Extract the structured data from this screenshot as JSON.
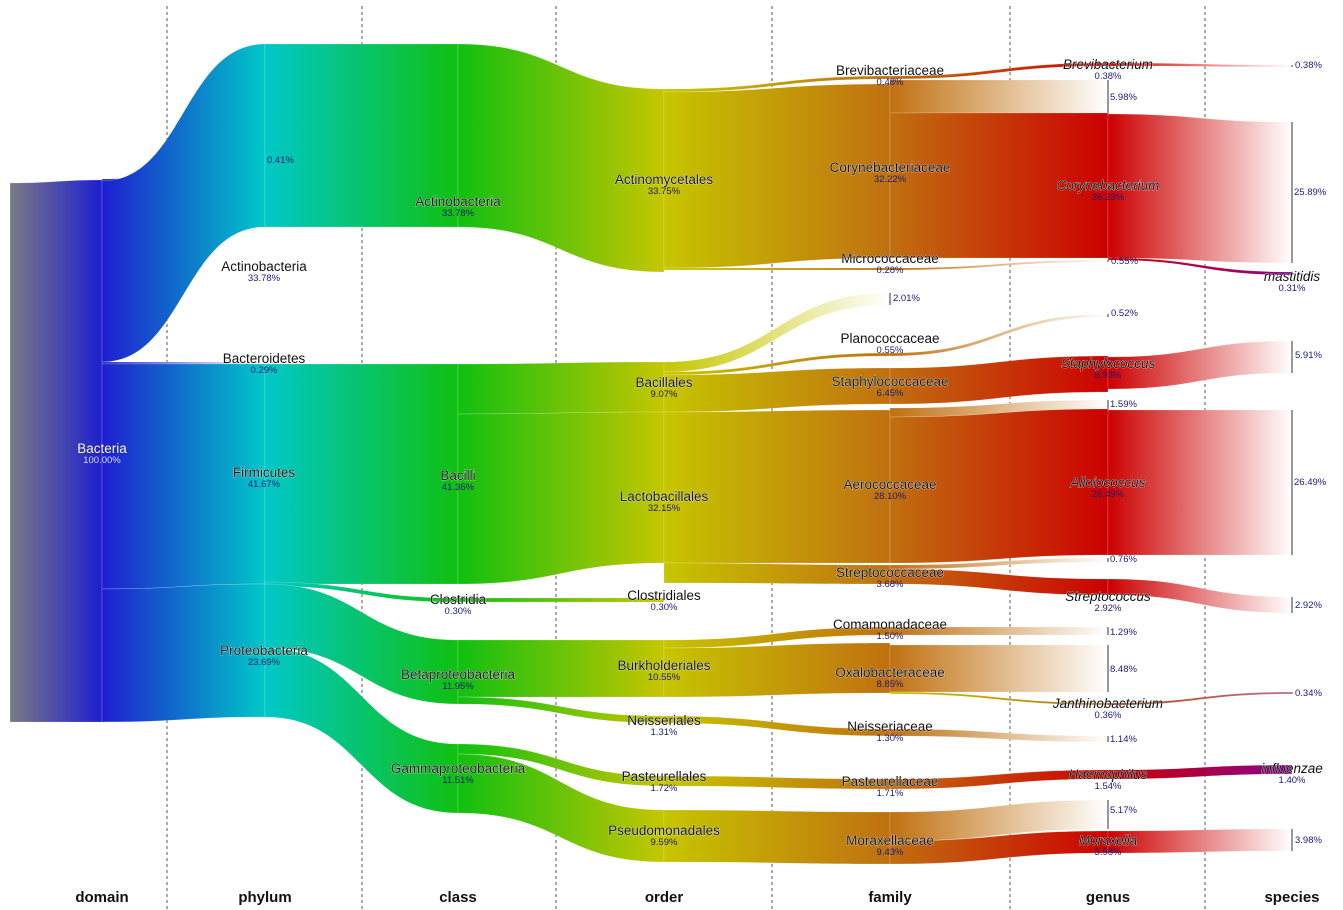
{
  "columns": [
    "domain",
    "phylum",
    "class",
    "order",
    "family",
    "genus",
    "species"
  ],
  "nodes": {
    "bacteria": {
      "name": "Bacteria",
      "pct": "100.00%"
    },
    "actinobacteria_p": {
      "name": "Actinobacteria",
      "pct": "33.78%"
    },
    "bacteroidetes": {
      "name": "Bacteroidetes",
      "pct": "0.29%"
    },
    "firmicutes": {
      "name": "Firmicutes",
      "pct": "41.67%"
    },
    "proteobacteria": {
      "name": "Proteobacteria",
      "pct": "23.69%"
    },
    "phylum_minor": {
      "pct": "0.41%"
    },
    "actinobacteria_c": {
      "name": "Actinobacteria",
      "pct": "33.78%"
    },
    "bacilli": {
      "name": "Bacilli",
      "pct": "41.36%"
    },
    "clostridia": {
      "name": "Clostridia",
      "pct": "0.30%"
    },
    "betaproteobacteria": {
      "name": "Betaproteobacteria",
      "pct": "11.95%"
    },
    "gammaproteobacteria": {
      "name": "Gammaproteobacteria",
      "pct": "11.51%"
    },
    "actinomycetales": {
      "name": "Actinomycetales",
      "pct": "33.75%"
    },
    "bacillales": {
      "name": "Bacillales",
      "pct": "9.07%"
    },
    "lactobacillales": {
      "name": "Lactobacillales",
      "pct": "32.15%"
    },
    "clostridiales": {
      "name": "Clostridiales",
      "pct": "0.30%"
    },
    "burkholderiales": {
      "name": "Burkholderiales",
      "pct": "10.55%"
    },
    "neisseriales": {
      "name": "Neisseriales",
      "pct": "1.31%"
    },
    "pasteurellales": {
      "name": "Pasteurellales",
      "pct": "1.72%"
    },
    "pseudomonadales": {
      "name": "Pseudomonadales",
      "pct": "9.59%"
    },
    "brevibacteriaceae": {
      "name": "Brevibacteriaceae",
      "pct": "0.48%"
    },
    "corynebacteriaceae": {
      "name": "Corynebacteriaceae",
      "pct": "32.22%"
    },
    "micrococcaceae": {
      "name": "Micrococcaceae",
      "pct": "0.28%"
    },
    "family_minor": {
      "pct": "2.01%"
    },
    "planococcaceae": {
      "name": "Planococcaceae",
      "pct": "0.55%"
    },
    "staphylococcaceae": {
      "name": "Staphylococcaceae",
      "pct": "6.45%"
    },
    "aerococcaceae": {
      "name": "Aerococcaceae",
      "pct": "28.10%"
    },
    "streptococcaceae": {
      "name": "Streptococcaceae",
      "pct": "3.68%"
    },
    "comamonadaceae": {
      "name": "Comamonadaceae",
      "pct": "1.50%"
    },
    "oxalobacteraceae": {
      "name": "Oxalobacteraceae",
      "pct": "8.85%"
    },
    "neisseriaceae": {
      "name": "Neisseriaceae",
      "pct": "1.30%"
    },
    "pasteurellaceae": {
      "name": "Pasteurellaceae",
      "pct": "1.71%"
    },
    "moraxellaceae": {
      "name": "Moraxellaceae",
      "pct": "9.43%"
    },
    "brevibacterium": {
      "name": "Brevibacterium",
      "pct": "0.38%"
    },
    "genus_coryne_other": {
      "pct": "5.98%"
    },
    "corynebacterium": {
      "name": "Corynebacterium",
      "pct": "26.23%"
    },
    "genus_micro": {
      "pct": "0.55%"
    },
    "genus_plano": {
      "pct": "0.52%"
    },
    "staphylococcus": {
      "name": "Staphylococcus",
      "pct": "5.93%"
    },
    "genus_aero_other": {
      "pct": "1.59%"
    },
    "alloiococcus": {
      "name": "Alloiococcus",
      "pct": "26.49%"
    },
    "genus_strep_other": {
      "pct": "0.76%"
    },
    "streptococcus": {
      "name": "Streptococcus",
      "pct": "2.92%"
    },
    "genus_coma": {
      "pct": "1.29%"
    },
    "genus_oxalo_other": {
      "pct": "8.48%"
    },
    "janthinobacterium": {
      "name": "Janthinobacterium",
      "pct": "0.36%"
    },
    "genus_neiss": {
      "pct": "1.14%"
    },
    "haemophilus": {
      "name": "Haemophilus",
      "pct": "1.54%"
    },
    "genus_morax_other": {
      "pct": "5.17%"
    },
    "moraxella": {
      "name": "Moraxella",
      "pct": "3.98%"
    },
    "sp_brevi": {
      "pct": "0.38%"
    },
    "sp_coryne": {
      "pct": "25.89%"
    },
    "mastitidis": {
      "name": "mastitidis",
      "pct": "0.31%"
    },
    "sp_staph": {
      "pct": "5.91%"
    },
    "sp_allo": {
      "pct": "26.49%"
    },
    "sp_strep": {
      "pct": "2.92%"
    },
    "sp_janth": {
      "pct": "0.34%"
    },
    "influenzae": {
      "name": "influenzae",
      "pct": "1.40%"
    },
    "sp_morax": {
      "pct": "3.98%"
    }
  }
}
